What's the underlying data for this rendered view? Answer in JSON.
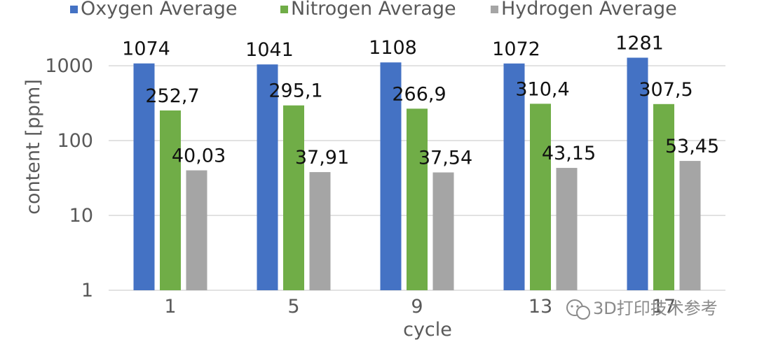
{
  "chart_data": {
    "type": "bar",
    "categories": [
      "1",
      "5",
      "9",
      "13",
      "17"
    ],
    "series": [
      {
        "name": "Oxygen Average",
        "values": [
          1074,
          1041,
          1108,
          1072,
          1281
        ],
        "labels": [
          "1074",
          "1041",
          "1108",
          "1072",
          "1281"
        ],
        "color": "#4472C4"
      },
      {
        "name": "Nitrogen Average",
        "values": [
          252.7,
          295.1,
          266.9,
          310.4,
          307.5
        ],
        "labels": [
          "252,7",
          "295,1",
          "266,9",
          "310,4",
          "307,5"
        ],
        "color": "#70AD47"
      },
      {
        "name": "Hydrogen Average",
        "values": [
          40.03,
          37.91,
          37.54,
          43.15,
          53.45
        ],
        "labels": [
          "40,03",
          "37,91",
          "37,54",
          "43,15",
          "53,45"
        ],
        "color": "#A5A5A5"
      }
    ],
    "xlabel": "cycle",
    "ylabel": "content [ppm]",
    "yscale": "log",
    "ylim": [
      1,
      1000
    ],
    "yticks": [
      "1",
      "10",
      "100",
      "1000"
    ],
    "grid": true,
    "legend": "top"
  },
  "watermark": {
    "text": "3D打印技术参考",
    "icon": "wechat-icon"
  }
}
